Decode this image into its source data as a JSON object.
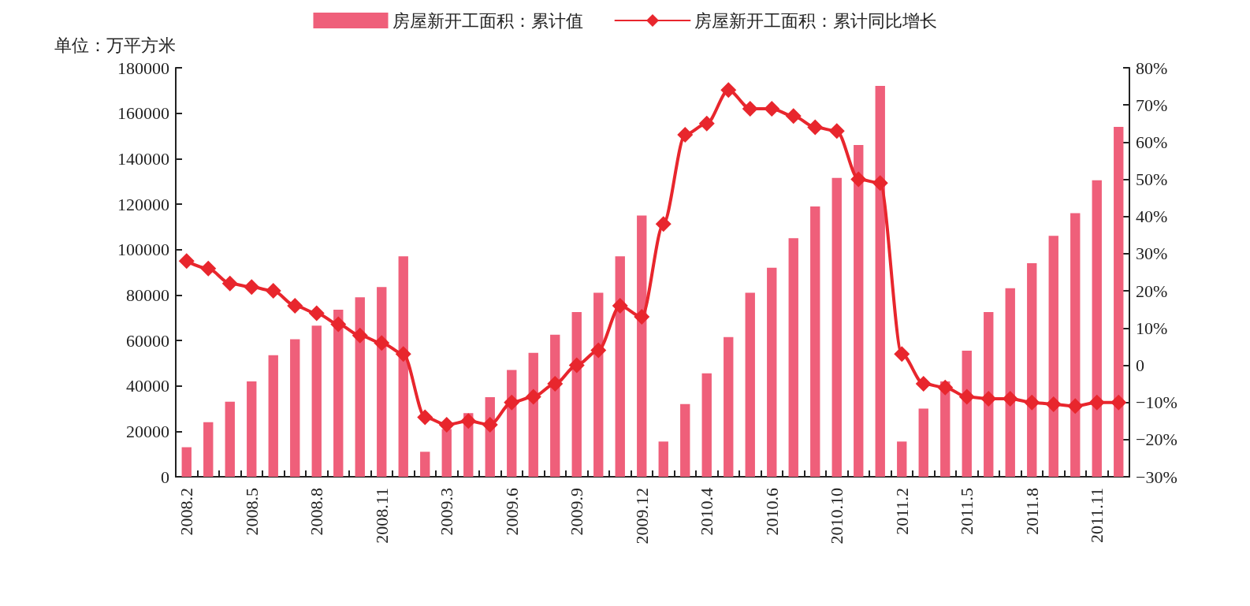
{
  "chart_data": {
    "type": "bar",
    "ylabel": "单位：万平方米",
    "categories": [
      "2008.2",
      null,
      null,
      "2008.5",
      null,
      null,
      "2008.8",
      null,
      null,
      "2008.11",
      null,
      null,
      "2009.3",
      null,
      null,
      "2009.6",
      null,
      null,
      "2009.9",
      null,
      null,
      "2009.12",
      null,
      null,
      "2010.4",
      null,
      null,
      "2010.6",
      null,
      null,
      "2010.10",
      null,
      null,
      "2011.2",
      null,
      null,
      "2011.5",
      null,
      null,
      "2011.8",
      null,
      null,
      "2011.11",
      null
    ],
    "series": [
      {
        "name": "房屋新开工面积：累计值",
        "color": "#ef5f7a",
        "values": [
          13000,
          24000,
          33000,
          42000,
          53500,
          60500,
          66500,
          73500,
          79000,
          83500,
          97000,
          11000,
          21000,
          28000,
          35000,
          47000,
          54500,
          62500,
          72500,
          81000,
          97000,
          115000,
          15500,
          32000,
          45500,
          61500,
          81000,
          92000,
          105000,
          119000,
          131500,
          146000,
          172000,
          15500,
          30000,
          42000,
          55500,
          72500,
          83000,
          94000,
          106000,
          116000,
          130500,
          154000
        ]
      },
      {
        "name": "房屋新开工面积：累计同比增长",
        "type": "line",
        "axis": "y2",
        "color": "#e8262d",
        "values": [
          28,
          26,
          22,
          21,
          20,
          16,
          14,
          11,
          8,
          6,
          3,
          -14,
          -16,
          -15,
          -16,
          -10,
          -8.5,
          -5,
          0,
          4,
          16,
          13,
          38,
          62,
          65,
          74,
          69,
          69,
          67,
          64,
          63,
          50,
          49,
          3,
          -5,
          -6,
          -8.5,
          -9,
          -9,
          -10,
          -10.5,
          -11,
          -10,
          -10
        ]
      }
    ],
    "ylim": [
      0,
      180000
    ],
    "yticks": [
      0,
      20000,
      40000,
      60000,
      80000,
      100000,
      120000,
      140000,
      160000,
      180000
    ],
    "y2lim": [
      -30,
      80
    ],
    "y2ticks": [
      {
        "value": -30,
        "label": "−30%"
      },
      {
        "value": -20,
        "label": "−20%"
      },
      {
        "value": -10,
        "label": "−10%"
      },
      {
        "value": 0,
        "label": "0"
      },
      {
        "value": 10,
        "label": "10%"
      },
      {
        "value": 20,
        "label": "20%"
      },
      {
        "value": 30,
        "label": "30%"
      },
      {
        "value": 40,
        "label": "40%"
      },
      {
        "value": 50,
        "label": "50%"
      },
      {
        "value": 60,
        "label": "60%"
      },
      {
        "value": 70,
        "label": "70%"
      },
      {
        "value": 80,
        "label": "80%"
      }
    ],
    "legend": "top",
    "grid": false,
    "marker": "diamond",
    "line_style": "solid"
  }
}
